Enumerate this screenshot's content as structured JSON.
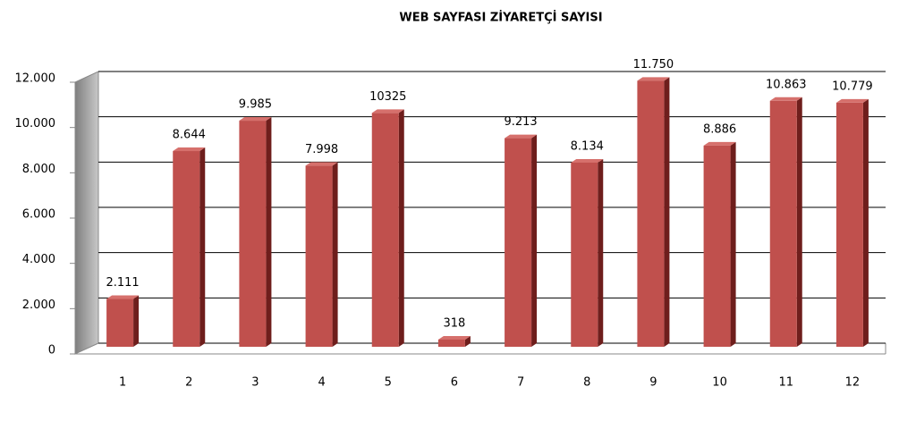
{
  "chart_data": {
    "type": "bar",
    "title": "WEB SAYFASI ZİYARETÇİ SAYISI",
    "categories": [
      "1",
      "2",
      "3",
      "4",
      "5",
      "6",
      "7",
      "8",
      "9",
      "10",
      "11",
      "12"
    ],
    "values": [
      2111,
      8644,
      9985,
      7998,
      10325,
      318,
      9213,
      8134,
      11750,
      8886,
      10863,
      10779
    ],
    "value_labels": [
      "2.111",
      "8.644",
      "9.985",
      "7.998",
      "10325",
      "318",
      "9.213",
      "8.134",
      "11.750",
      "8.886",
      "10.863",
      "10.779"
    ],
    "color": "#c0504d",
    "ylim": [
      0,
      12000
    ],
    "yticks": [
      0,
      {
        "value": 2000,
        "label": "2.000"
      },
      {
        "value": 4000,
        "label": "4.000"
      },
      {
        "value": 6000,
        "label": "6.000"
      },
      {
        "value": 8000,
        "label": "8.000"
      },
      {
        "value": 10000,
        "label": "10.000"
      },
      {
        "value": 12000,
        "label": "12.000"
      }
    ],
    "grid": true
  }
}
